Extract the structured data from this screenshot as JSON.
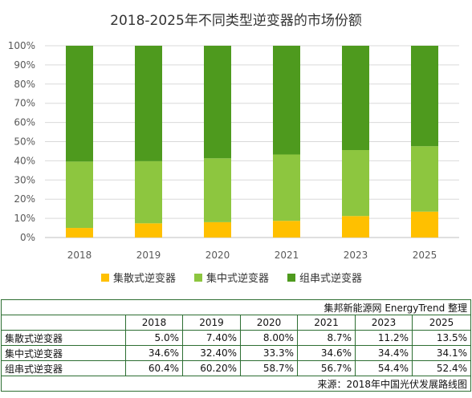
{
  "chart_data": {
    "type": "bar",
    "stacked": true,
    "title": "2018-2025年不同类型逆变器的市场份额",
    "categories": [
      "2018",
      "2019",
      "2020",
      "2021",
      "2023",
      "2025"
    ],
    "series": [
      {
        "name": "集散式逆变器",
        "color": "#ffc000",
        "values": [
          5.0,
          7.4,
          8.0,
          8.7,
          11.2,
          13.5
        ]
      },
      {
        "name": "集中式逆变器",
        "color": "#8dc63f",
        "values": [
          34.6,
          32.4,
          33.3,
          34.6,
          34.4,
          34.1
        ]
      },
      {
        "name": "组串式逆变器",
        "color": "#4e9a1e",
        "values": [
          60.4,
          60.2,
          58.7,
          56.7,
          54.4,
          52.4
        ]
      }
    ],
    "ylim": [
      0,
      100
    ],
    "yticks": [
      "0%",
      "10%",
      "20%",
      "30%",
      "40%",
      "50%",
      "60%",
      "70%",
      "80%",
      "90%",
      "100%"
    ],
    "grid": true,
    "legend_position": "bottom"
  },
  "table": {
    "header_note": "集邦新能源网 EnergyTrend 整理",
    "years": [
      "2018",
      "2019",
      "2020",
      "2021",
      "2023",
      "2025"
    ],
    "rows": [
      {
        "label": "集散式逆变器",
        "cells": [
          "5.0%",
          "7.40%",
          "8.00%",
          "8.7%",
          "11.2%",
          "13.5%"
        ]
      },
      {
        "label": "集中式逆变器",
        "cells": [
          "34.6%",
          "32.40%",
          "33.3%",
          "34.6%",
          "34.4%",
          "34.1%"
        ]
      },
      {
        "label": "组串式逆变器",
        "cells": [
          "60.4%",
          "60.20%",
          "58.7%",
          "56.7%",
          "54.4%",
          "52.4%"
        ]
      }
    ],
    "source_note": "来源：2018年中国光伏发展路线图"
  }
}
